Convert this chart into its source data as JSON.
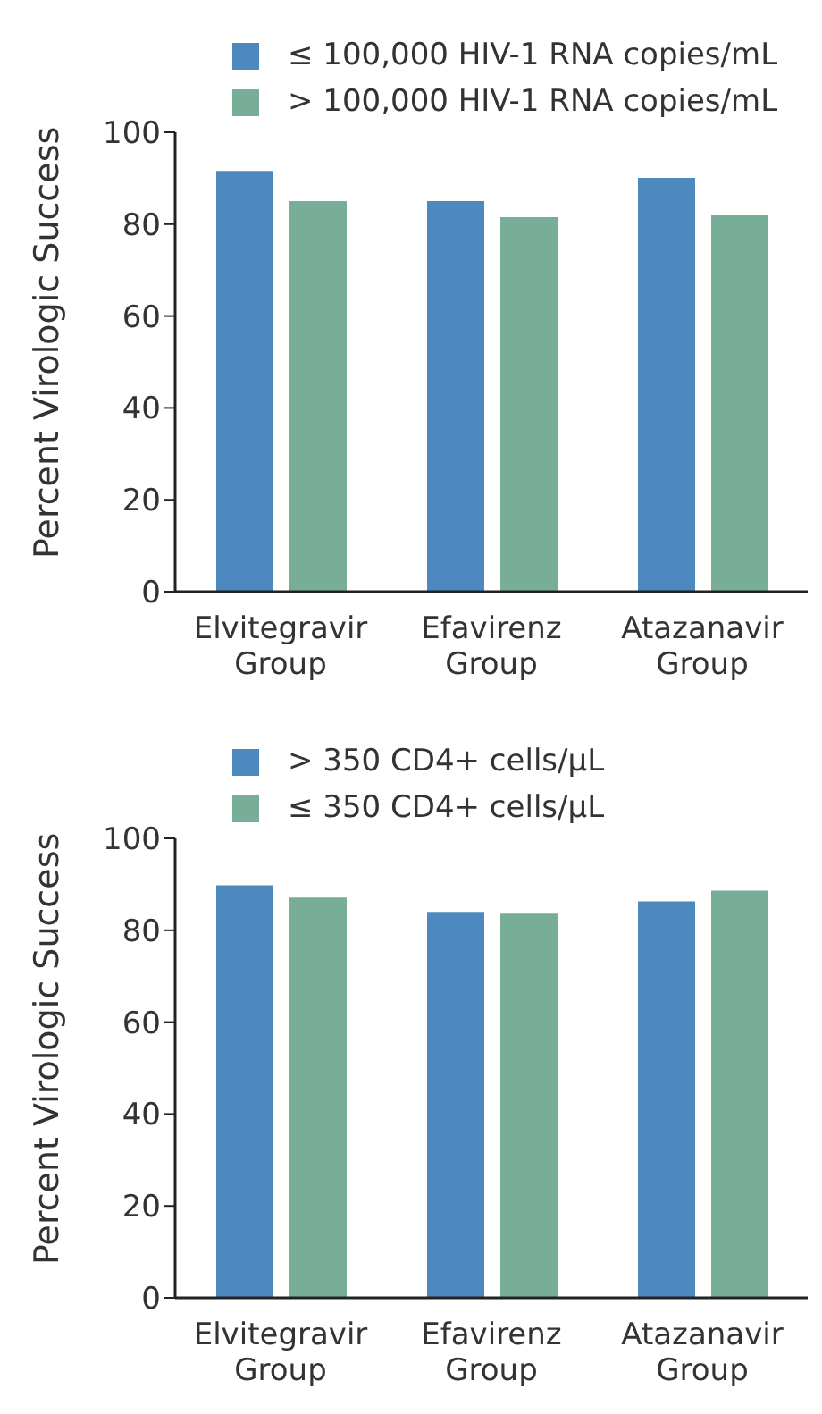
{
  "chart_data": [
    {
      "type": "bar",
      "ylabel": "Percent Virologic Success",
      "categories": [
        "Elvitegravir Group",
        "Efavirenz Group",
        "Atazanavir Group"
      ],
      "ylim": [
        0,
        100
      ],
      "yticks": [
        0,
        20,
        40,
        60,
        80,
        100
      ],
      "legend": "top",
      "grid": false,
      "series": [
        {
          "name": "≤ 100,000 HIV-1 RNA copies/mL",
          "color": "#4d88be",
          "values": [
            91.6,
            85.0,
            90.1
          ]
        },
        {
          "name": "> 100,000 HIV-1 RNA copies/mL",
          "color": "#78ae98",
          "values": [
            85.0,
            81.5,
            81.9
          ]
        }
      ]
    },
    {
      "type": "bar",
      "ylabel": "Percent Virologic Success",
      "categories": [
        "Elvitegravir Group",
        "Efavirenz Group",
        "Atazanavir Group"
      ],
      "ylim": [
        0,
        100
      ],
      "yticks": [
        0,
        20,
        40,
        60,
        80,
        100
      ],
      "legend": "top",
      "grid": false,
      "series": [
        {
          "name": "> 350 CD4+ cells/μL",
          "color": "#4d88be",
          "values": [
            89.8,
            84.0,
            86.3
          ]
        },
        {
          "name": "≤ 350 CD4+ cells/μL",
          "color": "#78ae98",
          "values": [
            87.1,
            83.6,
            88.6
          ]
        }
      ]
    }
  ]
}
